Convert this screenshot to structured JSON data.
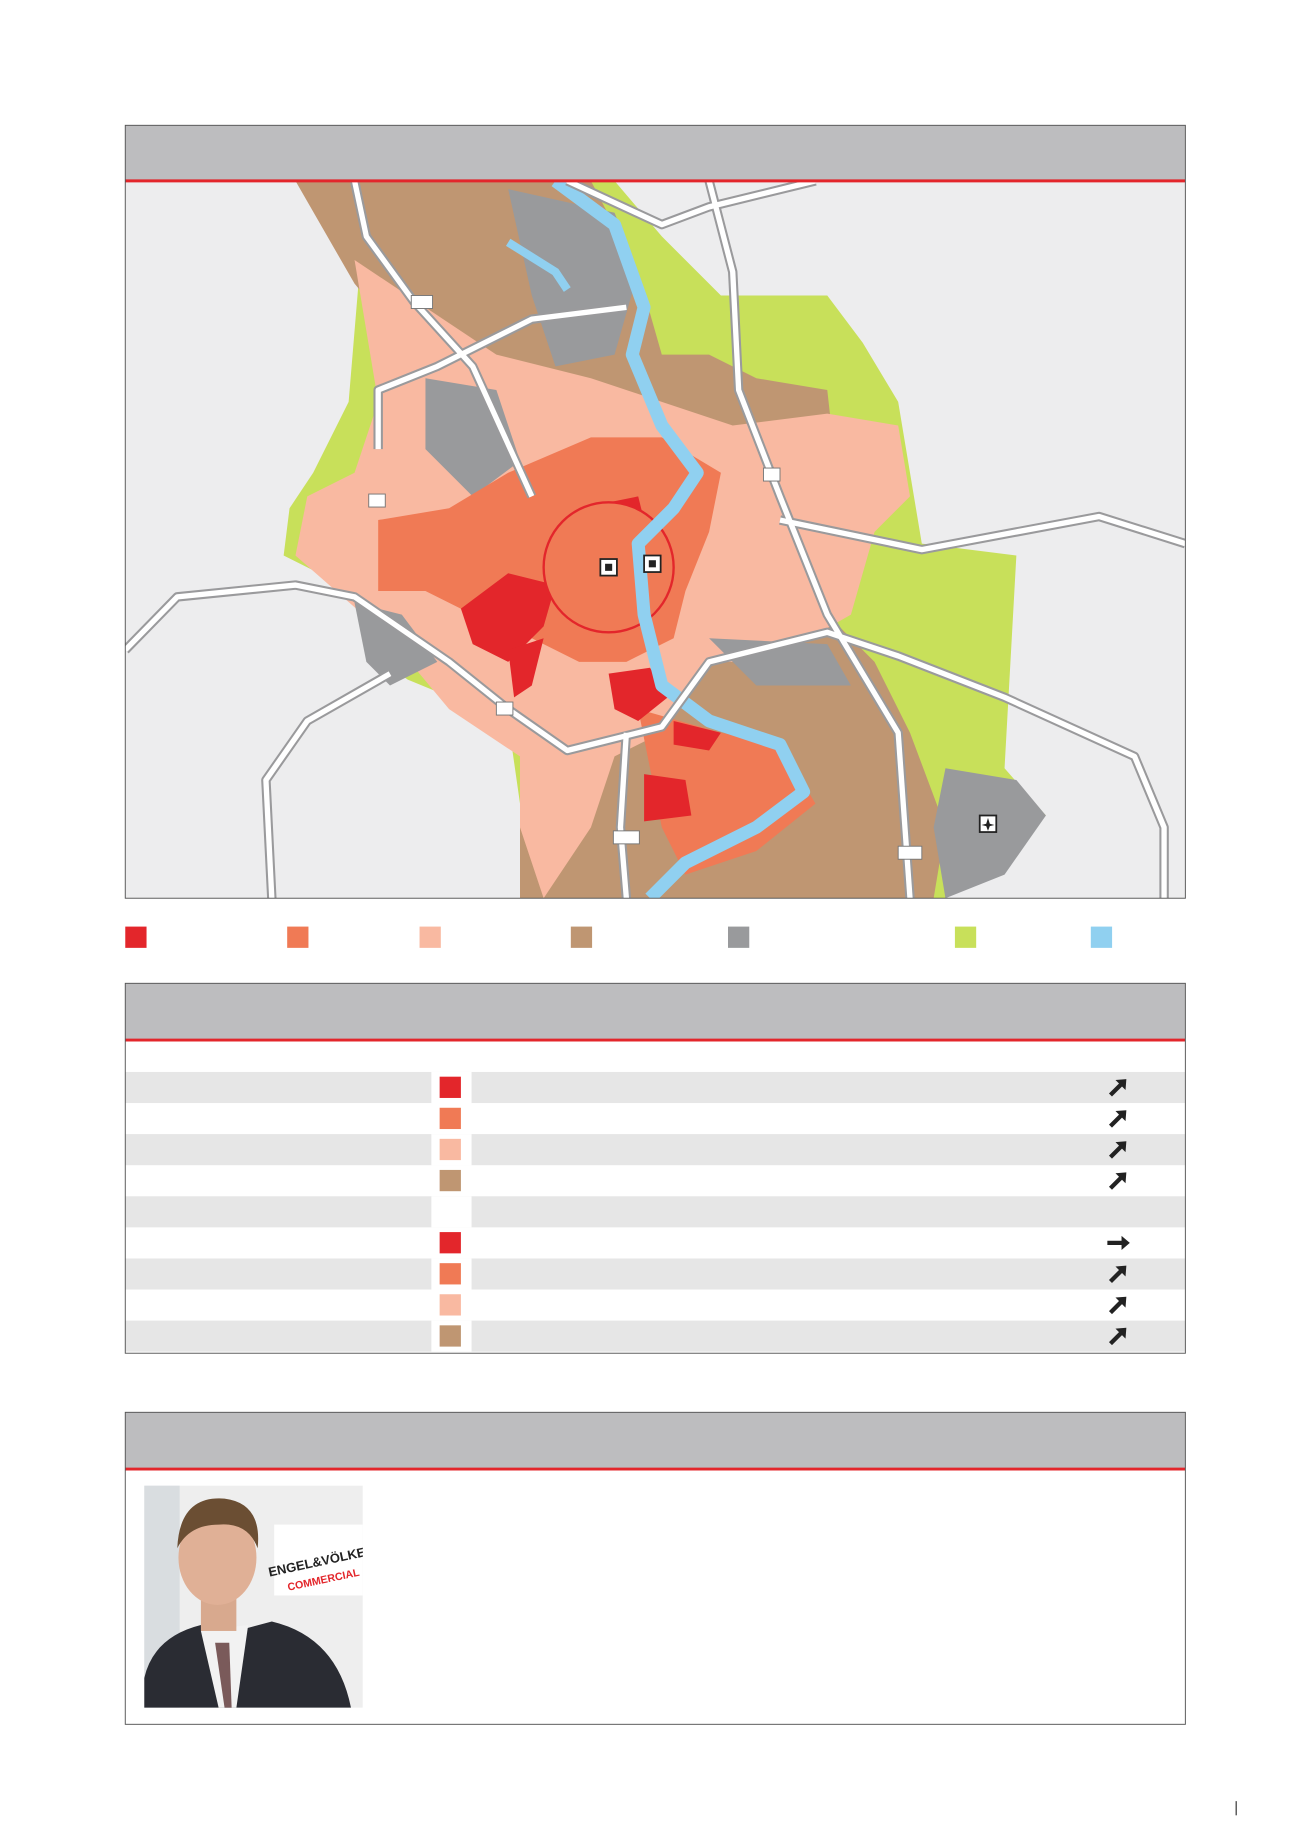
{
  "legend": {
    "colors": [
      "#e3262b",
      "#f07a55",
      "#f9b9a1",
      "#bf9672",
      "#999a9c",
      "#c8e05a",
      "#90d0f0"
    ]
  },
  "table": {
    "groups": [
      [
        {
          "swatch": "#e3262b",
          "trend": "up-right"
        },
        {
          "swatch": "#f07a55",
          "trend": "up-right"
        },
        {
          "swatch": "#f9b9a1",
          "trend": "up-right"
        },
        {
          "swatch": "#bf9672",
          "trend": "up-right"
        }
      ],
      [
        {
          "swatch": "#e3262b",
          "trend": "right"
        },
        {
          "swatch": "#f07a55",
          "trend": "up-right"
        },
        {
          "swatch": "#f9b9a1",
          "trend": "up-right"
        },
        {
          "swatch": "#bf9672",
          "trend": "up-right"
        }
      ]
    ]
  },
  "contact": {
    "photo_text": [
      "ENGEL&VÖLKERS",
      "COMMERCIAL"
    ]
  }
}
